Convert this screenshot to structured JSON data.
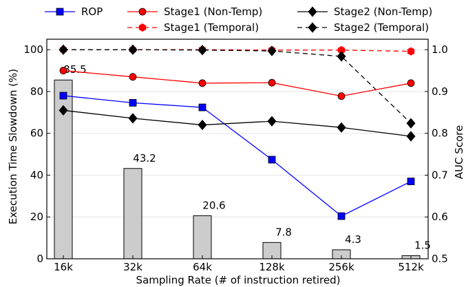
{
  "chart_data": {
    "type": "bar+line",
    "categories": [
      "16k",
      "32k",
      "64k",
      "128k",
      "256k",
      "512k"
    ],
    "xlabel": "Sampling Rate (# of instruction retired)",
    "ylabel_left": "Execution Time Slowdown (%)",
    "ylabel_right": "AUC Score",
    "ylim_left": [
      0,
      105
    ],
    "ylim_right": [
      0.5,
      1.025
    ],
    "yticks_left": [
      0,
      20,
      40,
      60,
      80,
      100
    ],
    "yticks_right": [
      0.5,
      0.6,
      0.7,
      0.8,
      0.9,
      1.0
    ],
    "grid": "horizontal, light",
    "legend_position": "top",
    "bars": {
      "axis": "left",
      "color": "#cccccc",
      "values": [
        85.5,
        43.2,
        20.6,
        7.8,
        4.3,
        1.5
      ],
      "labels": [
        "85.5",
        "43.2",
        "20.6",
        "7.8",
        "4.3",
        "1.5"
      ]
    },
    "series": [
      {
        "name": "ROP",
        "axis": "right",
        "color": "#0000ff",
        "marker": "square",
        "dash": false,
        "values": [
          0.89,
          0.873,
          0.862,
          0.737,
          0.602,
          0.685
        ]
      },
      {
        "name": "Stage1 (Non-Temp)",
        "axis": "right",
        "color": "#ff0000",
        "marker": "circle",
        "dash": false,
        "values": [
          0.95,
          0.935,
          0.92,
          0.921,
          0.889,
          0.92
        ]
      },
      {
        "name": "Stage2 (Non-Temp)",
        "axis": "right",
        "color": "#000000",
        "marker": "diamond",
        "dash": false,
        "values": [
          0.855,
          0.836,
          0.82,
          0.829,
          0.814,
          0.793
        ]
      },
      {
        "name": "Stage1 (Temporal)",
        "axis": "right",
        "color": "#ff0000",
        "marker": "hexagon",
        "dash": true,
        "values": [
          1.0,
          1.0,
          1.0,
          0.999,
          0.999,
          0.996
        ]
      },
      {
        "name": "Stage2 (Temporal)",
        "axis": "right",
        "color": "#000000",
        "marker": "diamond",
        "dash": true,
        "values": [
          1.0,
          1.0,
          0.999,
          0.997,
          0.984,
          0.824
        ]
      }
    ]
  }
}
